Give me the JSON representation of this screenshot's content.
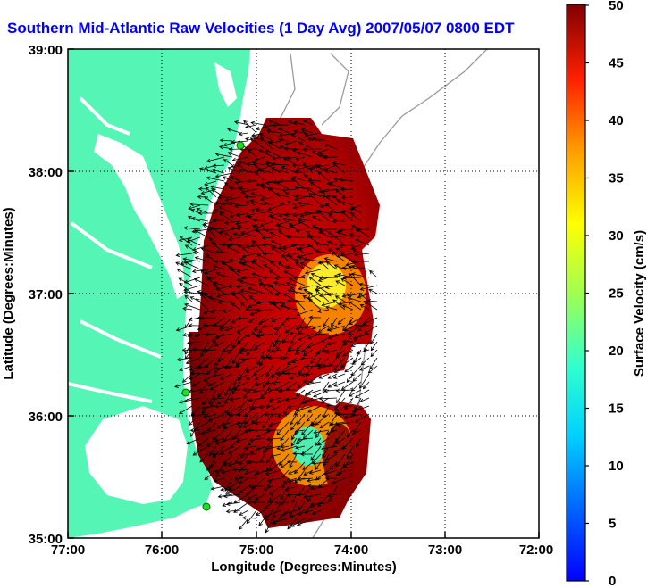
{
  "title": "Southern Mid-Atlantic Raw Velocities (1 Day Avg) 2007/05/07 0800 EDT",
  "axes": {
    "xlabel": "Longitude (Degrees:Minutes)",
    "ylabel": "Latitude (Degrees:Minutes)",
    "x_ticks": [
      "77:00",
      "76:00",
      "75:00",
      "74:00",
      "73:00",
      "72:00"
    ],
    "y_ticks": [
      "39:00",
      "38:00",
      "37:00",
      "36:00",
      "35:00"
    ]
  },
  "colorbar": {
    "label": "Surface Velocity (cm/s)",
    "ticks": [
      "50",
      "45",
      "40",
      "35",
      "30",
      "25",
      "20",
      "15",
      "10",
      "5",
      "0"
    ],
    "min": 0,
    "max": 50
  },
  "colors": {
    "title": "#0000ff",
    "land": "#55f5b5",
    "ocean": "#ffffff",
    "arrows": "#000000",
    "stations": "#22dd22",
    "bathymetry": "#9a9a9a"
  }
}
